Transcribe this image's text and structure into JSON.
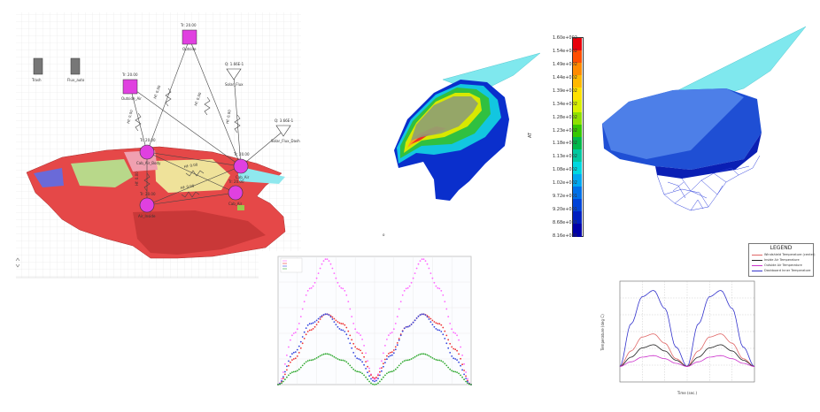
{
  "thermal_network": {
    "nodes": {
      "outside_top": {
        "label": "Outside",
        "value": "Tr: 20.00"
      },
      "outside_air": {
        "label": "Outside_Air",
        "value": "Tr: 20.00"
      },
      "solar_flux": {
        "label": "Solar_Flux",
        "value": "Q: 1.66E-1"
      },
      "solar_flux_dash": {
        "label": "Solar_Flux_Dash",
        "value": "Q: 3.66E-1"
      },
      "trash": {
        "label": "Trash"
      },
      "flux_auto": {
        "label": "Flux_auto"
      },
      "cab_node_left": {
        "label": "Cab_Air_Body",
        "value": "Tr: 20.00"
      },
      "cab_node_right": {
        "label": "Cab_Air",
        "value": "Tr: 20.00"
      },
      "cab_node_lower_left": {
        "label": "Air_Inside",
        "value": "Tr: 20.00"
      },
      "cab_node_lower_right": {
        "label": "Cab_Air",
        "value": "Tr: 20.00"
      }
    },
    "resistor_labels": [
      "Hf: 0.00",
      "Hf: 0.00",
      "Hf: 0.00",
      "Hf: 0.00",
      "Hf: 0.00",
      "Hf: 0.00",
      "Hf: 0.00"
    ]
  },
  "colorbar": {
    "labels": [
      "1.60e+002",
      "1.54e+002",
      "1.49e+002",
      "1.44e+002",
      "1.39e+002",
      "1.34e+002",
      "1.28e+002",
      "1.23e+002",
      "1.18e+002",
      "1.13e+002",
      "1.08e+002",
      "1.02e+002",
      "9.72e+001",
      "9.20e+001",
      "8.68e+001",
      "8.16e+001"
    ],
    "colors": [
      "#e8000b",
      "#ff4e00",
      "#ff8a00",
      "#ffb800",
      "#ffe100",
      "#d8f000",
      "#8ee000",
      "#36c800",
      "#00b84a",
      "#00c8a0",
      "#00d8e0",
      "#00a8f0",
      "#0070e8",
      "#0044d8",
      "#0020c0",
      "#0000a8"
    ],
    "axis_label": "AT"
  },
  "legend": {
    "title": "LEGEND",
    "entries": [
      {
        "label": "Windshield Temperature (center)",
        "color": "#e06666"
      },
      {
        "label": "Inside Air Temperature",
        "color": "#222222"
      },
      {
        "label": "Outside Air Temperature",
        "color": "#cc33cc"
      },
      {
        "label": "Dashboard Inner Temperature",
        "color": "#3333cc"
      }
    ]
  },
  "chart_data": [
    {
      "type": "scatter",
      "legend_placement": "top-left",
      "series": [
        {
          "color": "#ff66ff",
          "values": [
            0,
            80,
            150,
            196,
            150,
            80,
            8,
            80,
            150,
            196,
            150,
            80,
            0
          ]
        },
        {
          "color": "#ee3333",
          "values": [
            0,
            40,
            85,
            110,
            95,
            55,
            10,
            50,
            90,
            110,
            95,
            55,
            0
          ]
        },
        {
          "color": "#3344dd",
          "values": [
            0,
            50,
            95,
            110,
            85,
            40,
            5,
            45,
            90,
            110,
            85,
            40,
            0
          ]
        },
        {
          "color": "#33aa33",
          "values": [
            0,
            20,
            38,
            48,
            38,
            20,
            0,
            20,
            38,
            48,
            38,
            20,
            0
          ]
        }
      ],
      "grid": true
    },
    {
      "type": "line",
      "xlabel": "Time (sec.)",
      "ylabel": "Temperature (deg C)",
      "series": [
        {
          "color": "#3333cc",
          "values": [
            20,
            75,
            110,
            118,
            95,
            45,
            20,
            75,
            110,
            118,
            95,
            45,
            20
          ]
        },
        {
          "color": "#e06666",
          "values": [
            20,
            40,
            58,
            62,
            50,
            30,
            20,
            40,
            58,
            62,
            50,
            30,
            20
          ]
        },
        {
          "color": "#222222",
          "values": [
            20,
            32,
            44,
            48,
            40,
            28,
            20,
            32,
            44,
            48,
            40,
            28,
            20
          ]
        },
        {
          "color": "#cc33cc",
          "values": [
            20,
            26,
            32,
            34,
            30,
            24,
            20,
            26,
            32,
            34,
            30,
            24,
            20
          ]
        }
      ],
      "grid": true
    }
  ]
}
